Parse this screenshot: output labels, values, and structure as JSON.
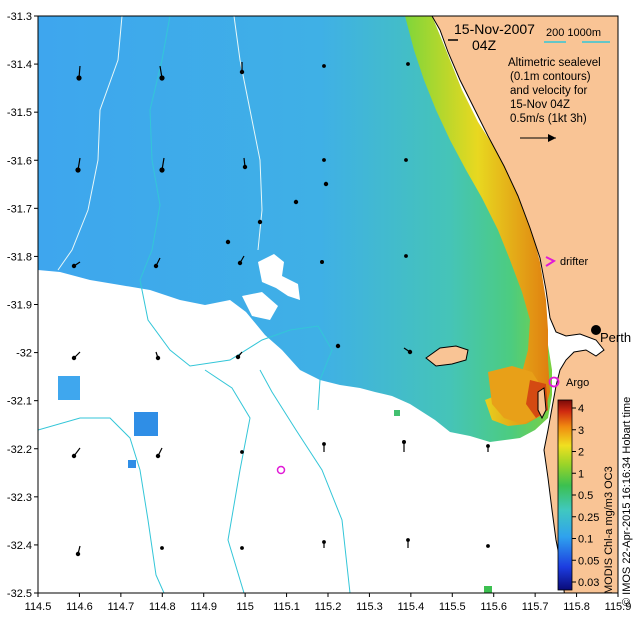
{
  "header": {
    "date": "15-Nov-2007",
    "time": "04Z",
    "depth_contours": "200  1000m"
  },
  "legend": {
    "line1": "Altimetric sealevel",
    "line2": "(0.1m contours)",
    "line3": "and velocity for",
    "line4": "15-Nov 04Z",
    "line5": "0.5m/s (1kt 3h)"
  },
  "labels": {
    "drifter": "drifter",
    "argo": "Argo",
    "city": "Perth"
  },
  "colorbar": {
    "ticks": [
      "4",
      "3",
      "2",
      "1",
      "0.5",
      "0.25",
      "0.1",
      "0.05",
      "0.03"
    ],
    "title": "MODIS Chl-a mg/m3 OC3",
    "credit": "© IMOS 22-Apr-2015 16:16:34 Hobart time"
  },
  "axes": {
    "x_ticks": [
      "114.5",
      "114.6",
      "114.7",
      "114.8",
      "114.9",
      "115",
      "115.1",
      "115.2",
      "115.3",
      "115.4",
      "115.5",
      "115.6",
      "115.7",
      "115.8",
      "115.9"
    ],
    "y_ticks": [
      "-31.3",
      "-31.4",
      "-31.5",
      "-31.6",
      "-31.7",
      "-31.8",
      "-31.9",
      "-32",
      "-32.1",
      "-32.2",
      "-32.3",
      "-32.4",
      "-32.5"
    ],
    "xlim": [
      114.5,
      115.9
    ],
    "ylim": [
      -32.5,
      -31.3
    ]
  },
  "colors": {
    "land": "#f9c495",
    "chl_low": "#3fa7ee",
    "chl_mid": "#48c2b0",
    "chl_high": "#e08a10",
    "contour": "#33c6d8",
    "depth_200": "#33c6d8",
    "marker": "#e01ad6"
  }
}
